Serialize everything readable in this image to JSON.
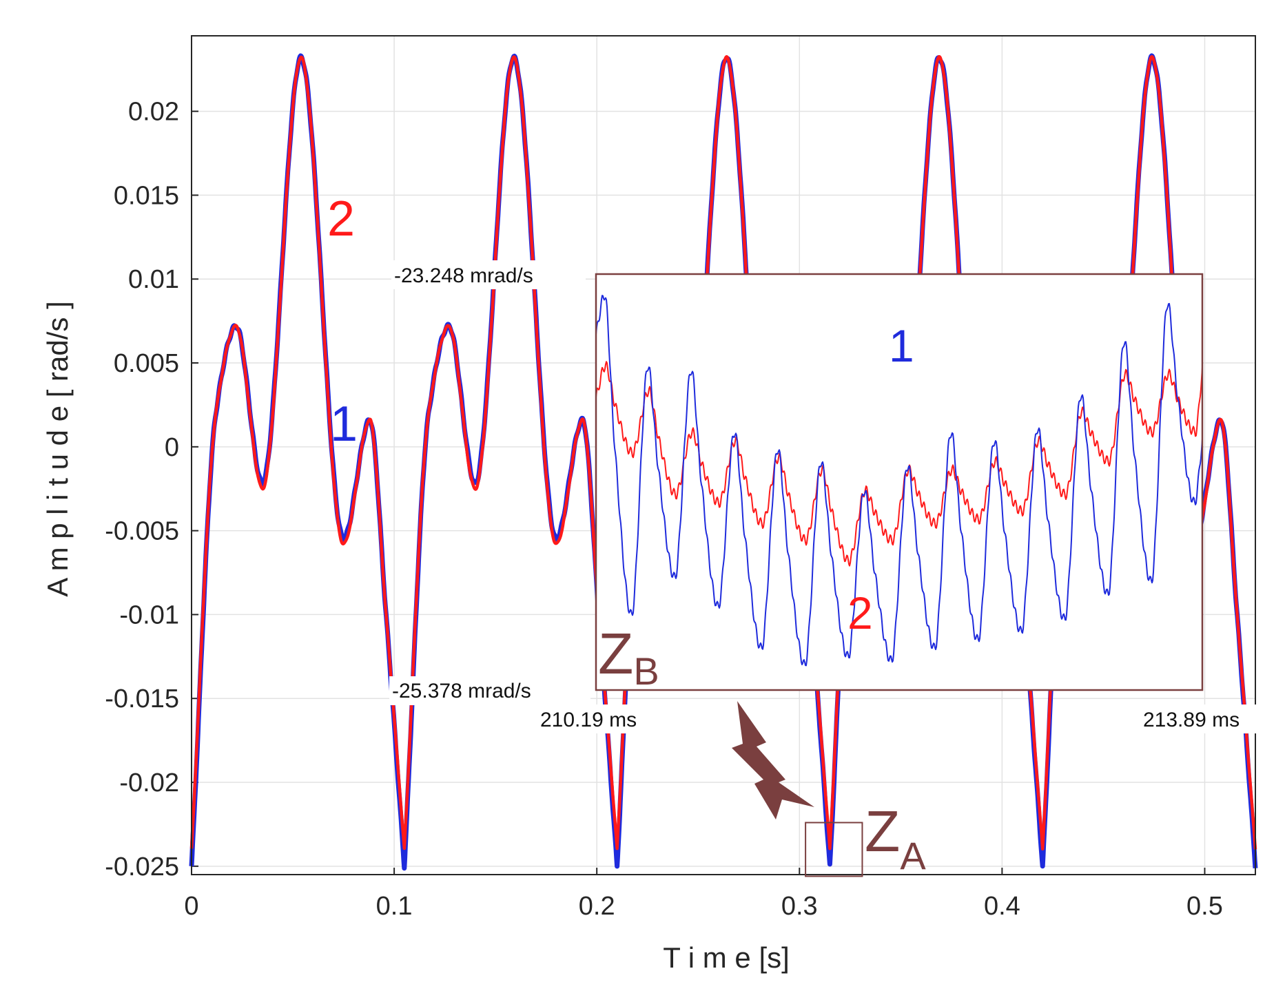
{
  "chart_data": {
    "type": "line",
    "xlabel": "T i m e [s]",
    "ylabel": "A m p l i t u d e [ rad/s ]",
    "xlim": [
      0,
      0.525
    ],
    "ylim": [
      -0.0255,
      0.0245
    ],
    "x_ticks": [
      0,
      0.1,
      0.2,
      0.3,
      0.4,
      0.5
    ],
    "x_tick_labels": [
      "0",
      "0.1",
      "0.2",
      "0.3",
      "0.4",
      "0.5"
    ],
    "y_ticks": [
      0.02,
      0.015,
      0.01,
      0.005,
      0,
      -0.005,
      -0.01,
      -0.015,
      -0.02,
      -0.025
    ],
    "y_tick_labels": [
      "0.02",
      "0.015",
      "0.01",
      "0.005",
      "0",
      "-0.005",
      "-0.01",
      "-0.015",
      "-0.02",
      "-0.025"
    ],
    "grid": true,
    "period_s": 0.105,
    "series": [
      {
        "name": "1",
        "color": "#1f2bdc",
        "one_period_keypoints": {
          "t": [
            0,
            0.012,
            0.022,
            0.035,
            0.054,
            0.075,
            0.088,
            0.096,
            0.105
          ],
          "v": [
            -0.025,
            0.002,
            0.0072,
            -0.0022,
            0.0232,
            -0.0055,
            0.0016,
            -0.01,
            -0.025
          ]
        }
      },
      {
        "name": "2",
        "color": "#ff1a1a",
        "one_period_keypoints": {
          "t": [
            0,
            0.012,
            0.022,
            0.035,
            0.054,
            0.075,
            0.088,
            0.096,
            0.105
          ],
          "v": [
            -0.024,
            0.002,
            0.0072,
            -0.0025,
            0.0232,
            -0.0058,
            0.0016,
            -0.01,
            -0.024
          ]
        }
      }
    ],
    "curve_labels": [
      {
        "text": "2",
        "color": "#ff1a1a"
      },
      {
        "text": "1",
        "color": "#1f2bdc"
      }
    ],
    "inset": {
      "label_main": "Z",
      "label_sub": "B",
      "y_top_label": "-23.248 mrad/s",
      "y_bottom_label": "-25.378 mrad/s",
      "x_start_label": "210.19 ms",
      "x_end_label": "213.89 ms",
      "series_labels": [
        {
          "text": "1",
          "color": "#1f2bdc"
        },
        {
          "text": "2",
          "color": "#ff1a1a"
        }
      ],
      "blue_cycles": [
        {
          "peak": 0.95,
          "trough": 0.18
        },
        {
          "peak": 0.78,
          "trough": 0.27
        },
        {
          "peak": 0.77,
          "trough": 0.2
        },
        {
          "peak": 0.62,
          "trough": 0.1
        },
        {
          "peak": 0.58,
          "trough": 0.06
        },
        {
          "peak": 0.55,
          "trough": 0.08
        },
        {
          "peak": 0.48,
          "trough": 0.07
        },
        {
          "peak": 0.54,
          "trough": 0.1
        },
        {
          "peak": 0.62,
          "trough": 0.12
        },
        {
          "peak": 0.6,
          "trough": 0.14
        },
        {
          "peak": 0.63,
          "trough": 0.17
        },
        {
          "peak": 0.71,
          "trough": 0.23
        },
        {
          "peak": 0.84,
          "trough": 0.26
        },
        {
          "peak": 0.93,
          "trough": 0.45
        }
      ],
      "red_cycles": [
        {
          "peak": 0.78,
          "trough": 0.57
        },
        {
          "peak": 0.72,
          "trough": 0.47
        },
        {
          "peak": 0.62,
          "trough": 0.45
        },
        {
          "peak": 0.6,
          "trough": 0.4
        },
        {
          "peak": 0.56,
          "trough": 0.36
        },
        {
          "peak": 0.53,
          "trough": 0.31
        },
        {
          "peak": 0.48,
          "trough": 0.36
        },
        {
          "peak": 0.53,
          "trough": 0.4
        },
        {
          "peak": 0.53,
          "trough": 0.41
        },
        {
          "peak": 0.55,
          "trough": 0.43
        },
        {
          "peak": 0.6,
          "trough": 0.47
        },
        {
          "peak": 0.67,
          "trough": 0.55
        },
        {
          "peak": 0.76,
          "trough": 0.62
        },
        {
          "peak": 0.76,
          "trough": 0.62
        }
      ]
    },
    "zoom_region": {
      "label_main": "Z",
      "label_sub": "A",
      "x_range": [
        0.303,
        0.331
      ],
      "y_range": [
        -0.0256,
        -0.0224
      ]
    },
    "colors": {
      "series1": "#1f2bdc",
      "series2": "#ff1a1a",
      "annotation": "#7a3f3f",
      "grid": "#e2e2e2",
      "axis": "#262626"
    }
  }
}
